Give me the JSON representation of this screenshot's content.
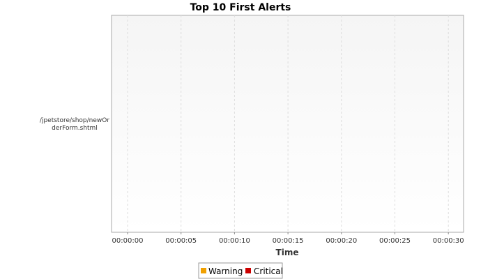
{
  "chart_data": {
    "type": "bar",
    "orientation": "horizontal",
    "title": "Top 10 First Alerts",
    "xlabel": "Time",
    "ylabel": "",
    "categories": [
      [
        "/jpetstore/shop/newOr",
        "derForm.shtml"
      ]
    ],
    "x_ticks": [
      "00:00:00",
      "00:00:05",
      "00:00:10",
      "00:00:15",
      "00:00:20",
      "00:00:25",
      "00:00:30"
    ],
    "xlim_seconds": [
      0,
      31
    ],
    "series": [
      {
        "name": "Warning",
        "color": "#f0a000",
        "values": [
          0
        ]
      },
      {
        "name": "Critical",
        "color": "#cc0000",
        "values": [
          0
        ]
      }
    ],
    "grid": true,
    "legend_position": "bottom"
  }
}
